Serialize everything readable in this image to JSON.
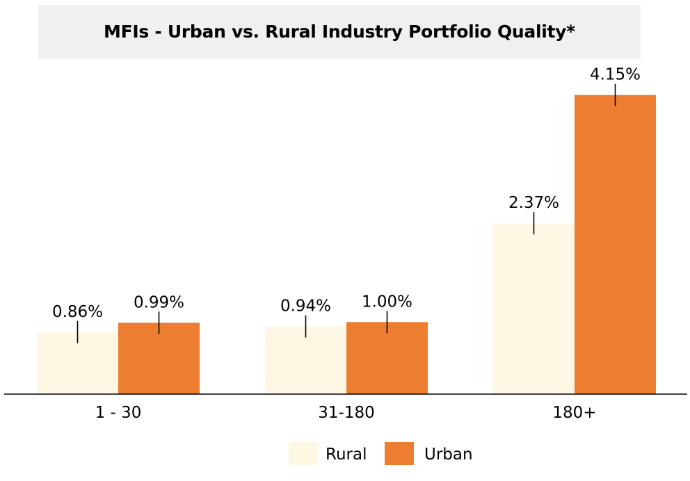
{
  "chart_data": {
    "type": "bar",
    "title": "MFIs - Urban vs. Rural Industry Portfolio Quality*",
    "categories": [
      "1 - 30",
      "31-180",
      "180+"
    ],
    "series": [
      {
        "name": "Rural",
        "color": "#fdf7e4",
        "values": [
          0.86,
          0.94,
          2.37
        ],
        "labels": [
          "0.86%",
          "0.94%",
          "2.37%"
        ]
      },
      {
        "name": "Urban",
        "color": "#ed7d31",
        "values": [
          0.99,
          1.0,
          4.15
        ],
        "labels": [
          "0.99%",
          "1.00%",
          "4.15%"
        ]
      }
    ],
    "error_bars": true,
    "ylim": [
      0,
      4.6
    ],
    "y_axis_visible": false,
    "grid": false,
    "legend_position": "bottom-center"
  }
}
